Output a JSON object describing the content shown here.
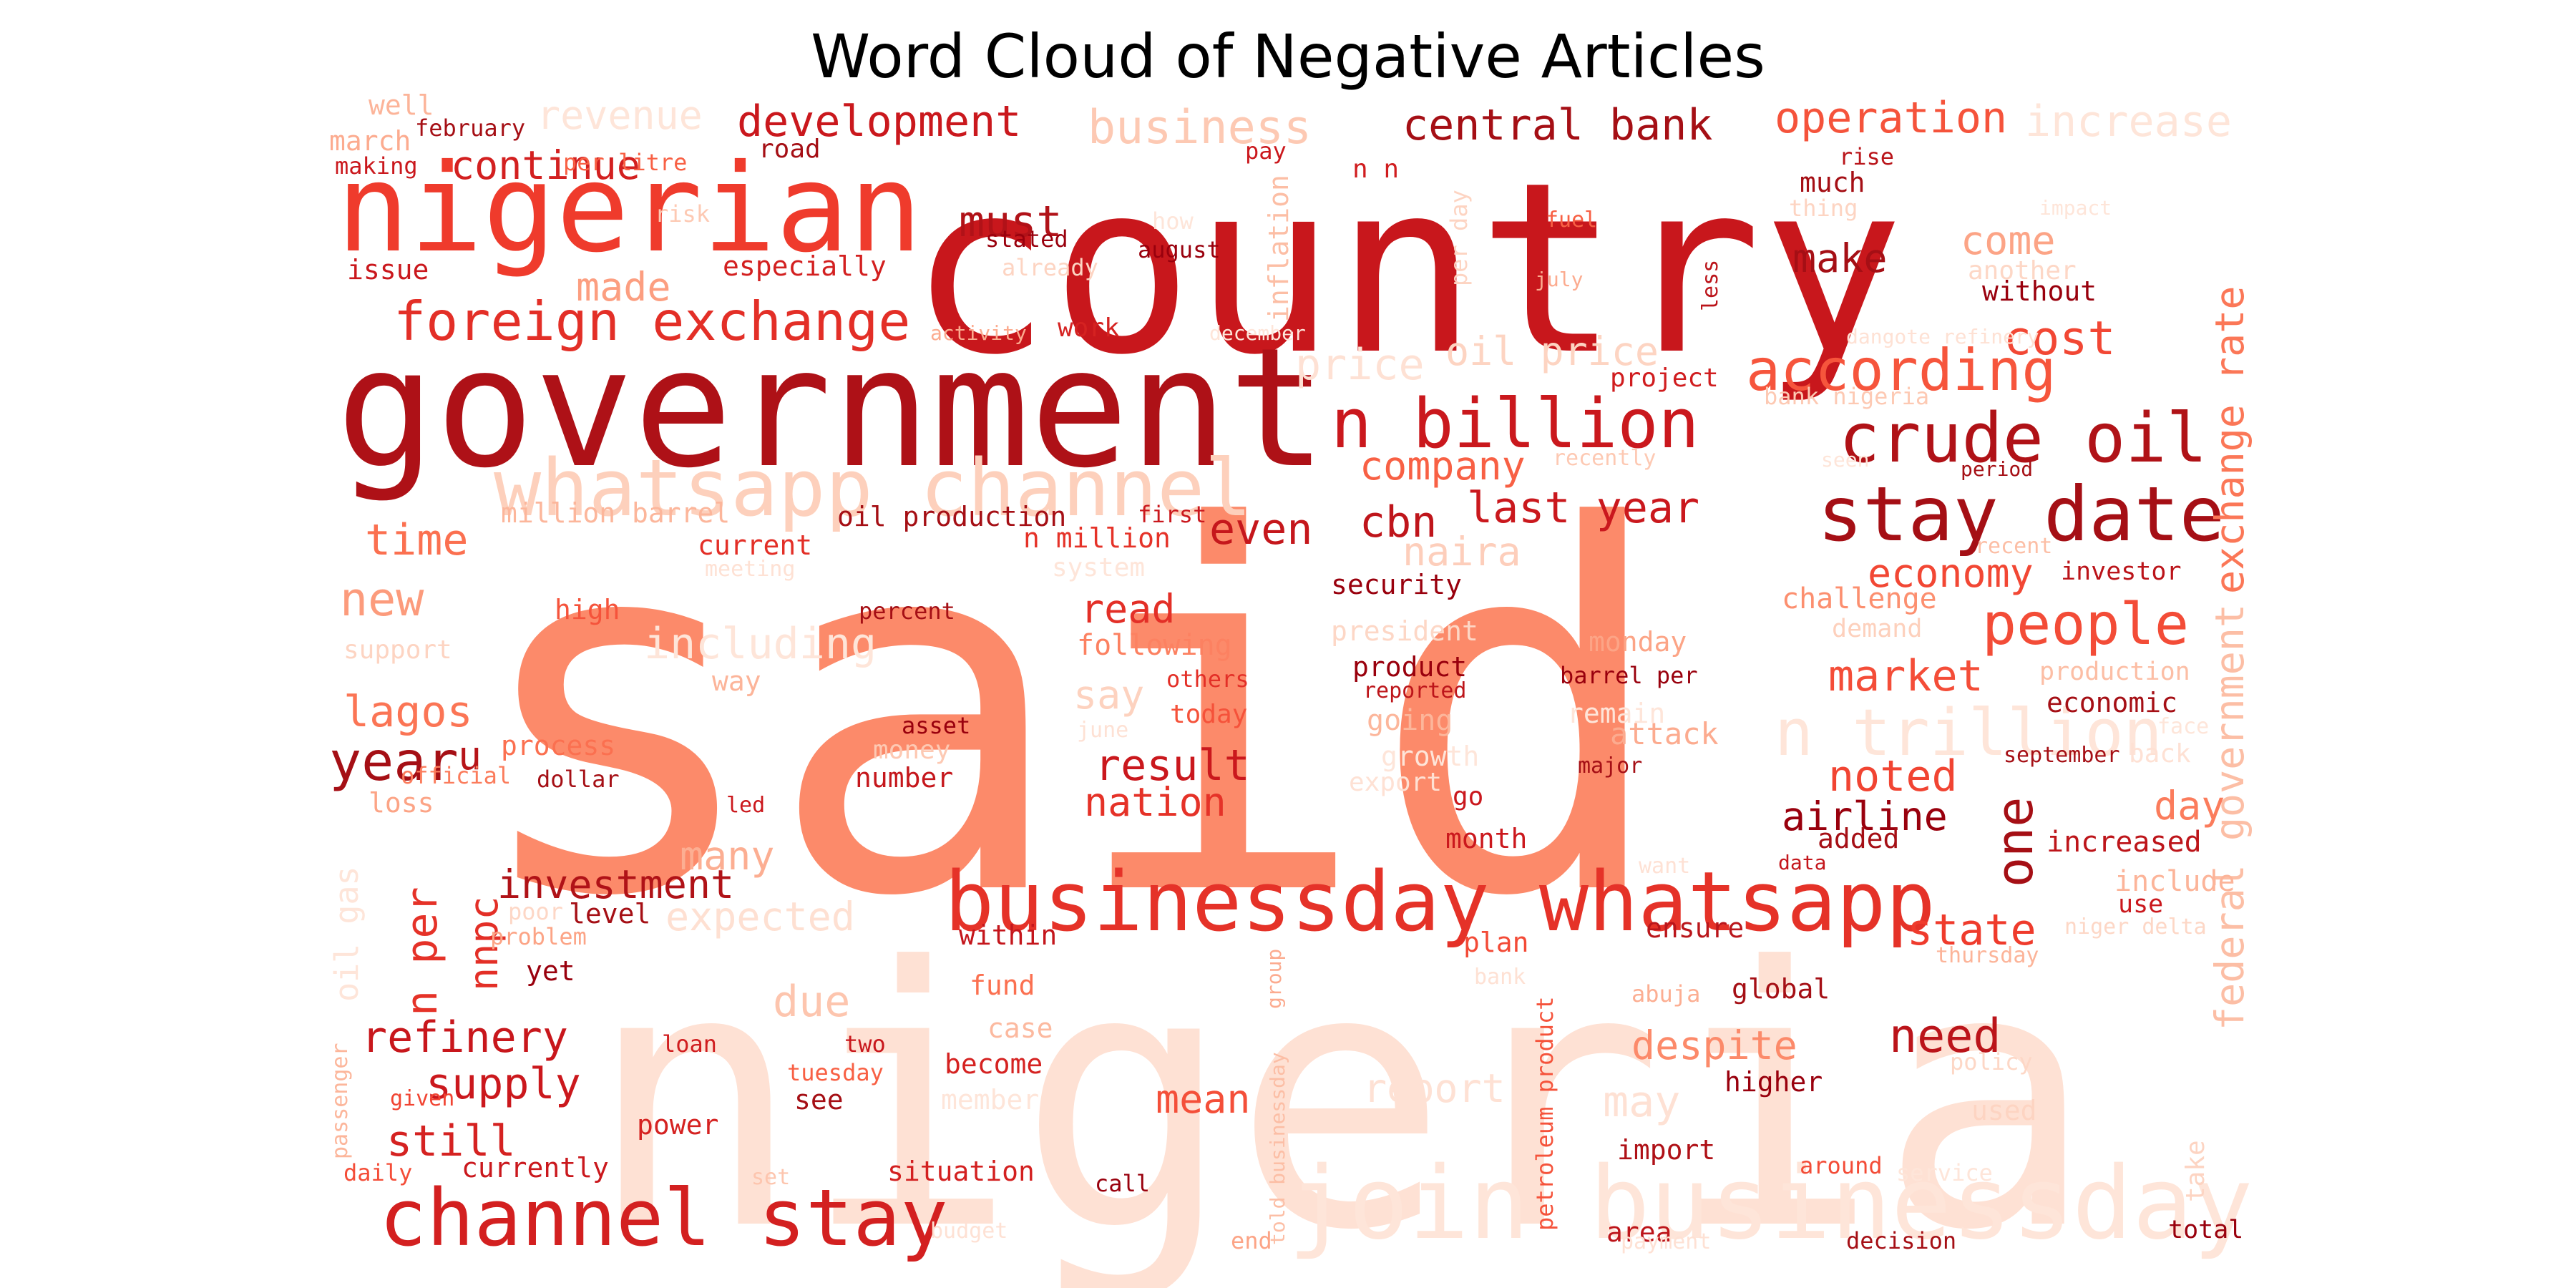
{
  "chart_data": {
    "type": "wordcloud",
    "title": "Word Cloud of Negative Articles",
    "colormap": "Reds",
    "words": [
      {
        "text": "said",
        "color": "#fc8a6a"
      },
      {
        "text": "nigeria",
        "color": "#fee1d4"
      },
      {
        "text": "country",
        "color": "#c8171c"
      },
      {
        "text": "government",
        "color": "#ae1117"
      },
      {
        "text": "nigerian",
        "color": "#ef3b2c"
      },
      {
        "text": "join businessday",
        "color": "#fee5d9"
      },
      {
        "text": "businessday whatsapp",
        "color": "#e53228"
      },
      {
        "text": "whatsapp channel",
        "color": "#fdd0bc"
      },
      {
        "text": "channel stay",
        "color": "#d32020"
      },
      {
        "text": "stay date",
        "color": "#a50f15"
      },
      {
        "text": "n billion",
        "color": "#ca181d"
      },
      {
        "text": "crude oil",
        "color": "#b01217"
      },
      {
        "text": "foreign exchange",
        "color": "#e32f27"
      },
      {
        "text": "n trillion",
        "color": "#fee5d9"
      },
      {
        "text": "according",
        "color": "#f6553c"
      },
      {
        "text": "people",
        "color": "#f34c37"
      },
      {
        "text": "exchange rate",
        "color": "#fb7757"
      },
      {
        "text": "federal government",
        "color": "#fcbea5"
      },
      {
        "text": "development",
        "color": "#ca181d"
      },
      {
        "text": "central bank",
        "color": "#a50f15"
      },
      {
        "text": "operation",
        "color": "#f5533b"
      },
      {
        "text": "increase",
        "color": "#fee5d9"
      },
      {
        "text": "business",
        "color": "#fdc9b3"
      },
      {
        "text": "revenue",
        "color": "#fee5d9"
      },
      {
        "text": "continue",
        "color": "#d32020"
      },
      {
        "text": "must",
        "color": "#b11218"
      },
      {
        "text": "made",
        "color": "#fc9e80"
      },
      {
        "text": "make",
        "color": "#a50f15"
      },
      {
        "text": "come",
        "color": "#fca486"
      },
      {
        "text": "cost",
        "color": "#f24734"
      },
      {
        "text": "oil price",
        "color": "#fdd4c2"
      },
      {
        "text": "price",
        "color": "#fee1d4"
      },
      {
        "text": "company",
        "color": "#f86044"
      },
      {
        "text": "last year",
        "color": "#ca181d"
      },
      {
        "text": "even",
        "color": "#c5171c"
      },
      {
        "text": "cbn",
        "color": "#bf151b"
      },
      {
        "text": "naira",
        "color": "#fdcebb"
      },
      {
        "text": "economy",
        "color": "#f24734"
      },
      {
        "text": "time",
        "color": "#fb7050"
      },
      {
        "text": "new",
        "color": "#fc9b7c"
      },
      {
        "text": "including",
        "color": "#fee5d9"
      },
      {
        "text": "lagos",
        "color": "#fb7555"
      },
      {
        "text": "year",
        "color": "#a50f15"
      },
      {
        "text": "u",
        "color": "#b61419"
      },
      {
        "text": "read",
        "color": "#e32f27"
      },
      {
        "text": "say",
        "color": "#fdd2bf"
      },
      {
        "text": "result",
        "color": "#ca181d"
      },
      {
        "text": "nation",
        "color": "#e53228"
      },
      {
        "text": "market",
        "color": "#f44d38"
      },
      {
        "text": "noted",
        "color": "#f14432"
      },
      {
        "text": "airline",
        "color": "#99000d"
      },
      {
        "text": "one",
        "color": "#a50f15"
      },
      {
        "text": "day",
        "color": "#fb7c5c"
      },
      {
        "text": "state",
        "color": "#ef3b2c"
      },
      {
        "text": "need",
        "color": "#bb141a"
      },
      {
        "text": "despite",
        "color": "#fc8a6a"
      },
      {
        "text": "investment",
        "color": "#b01217"
      },
      {
        "text": "many",
        "color": "#fcae92"
      },
      {
        "text": "expected",
        "color": "#fee0d2"
      },
      {
        "text": "due",
        "color": "#fdc5ae"
      },
      {
        "text": "refinery",
        "color": "#c8171c"
      },
      {
        "text": "supply",
        "color": "#cb181d"
      },
      {
        "text": "still",
        "color": "#d52221"
      },
      {
        "text": "mean",
        "color": "#f44f39"
      },
      {
        "text": "report",
        "color": "#fee1d4"
      },
      {
        "text": "may",
        "color": "#fee1d4"
      },
      {
        "text": "n per",
        "color": "#e53228"
      },
      {
        "text": "nnpc",
        "color": "#e32f27"
      },
      {
        "text": "oil gas",
        "color": "#fee5d9"
      },
      {
        "text": "production",
        "color": "#fcbea5"
      },
      {
        "text": "economic",
        "color": "#a50f15"
      },
      {
        "text": "increased",
        "color": "#bd151a"
      },
      {
        "text": "include",
        "color": "#fcb499"
      },
      {
        "text": "use",
        "color": "#ca181d"
      },
      {
        "text": "challenge",
        "color": "#fc8f6f"
      },
      {
        "text": "investor",
        "color": "#bb141a"
      },
      {
        "text": "security",
        "color": "#99000d"
      },
      {
        "text": "attack",
        "color": "#fcab8f"
      },
      {
        "text": "remain",
        "color": "#fee5d9"
      },
      {
        "text": "growth",
        "color": "#fee5d9"
      },
      {
        "text": "monday",
        "color": "#fca486"
      },
      {
        "text": "barrel per",
        "color": "#99000d"
      },
      {
        "text": "product",
        "color": "#99000d"
      },
      {
        "text": "reported",
        "color": "#bd151a"
      },
      {
        "text": "going",
        "color": "#fcb69b"
      },
      {
        "text": "president",
        "color": "#fdd7c6"
      },
      {
        "text": "demand",
        "color": "#fdd0bc"
      },
      {
        "text": "following",
        "color": "#fc8161"
      },
      {
        "text": "others",
        "color": "#e32f27"
      },
      {
        "text": "today",
        "color": "#f5523a"
      },
      {
        "text": "month",
        "color": "#cb181d"
      },
      {
        "text": "added",
        "color": "#a50f15"
      },
      {
        "text": "ensure",
        "color": "#ba161b"
      },
      {
        "text": "plan",
        "color": "#f34a36"
      },
      {
        "text": "global",
        "color": "#a50f15"
      },
      {
        "text": "fund",
        "color": "#fb7050"
      },
      {
        "text": "case",
        "color": "#fcb99f"
      },
      {
        "text": "become",
        "color": "#d52221"
      },
      {
        "text": "member",
        "color": "#fee5d9"
      },
      {
        "text": "higher",
        "color": "#99000d"
      },
      {
        "text": "import",
        "color": "#af1117"
      },
      {
        "text": "situation",
        "color": "#d32020"
      },
      {
        "text": "call",
        "color": "#99000d"
      },
      {
        "text": "area",
        "color": "#bd151a"
      },
      {
        "text": "total",
        "color": "#99000d"
      },
      {
        "text": "decision",
        "color": "#a50f15"
      },
      {
        "text": "around",
        "color": "#f34c37"
      },
      {
        "text": "currently",
        "color": "#ca181d"
      },
      {
        "text": "power",
        "color": "#d52221"
      },
      {
        "text": "see",
        "color": "#a50f15"
      },
      {
        "text": "tuesday",
        "color": "#f86044"
      },
      {
        "text": "two",
        "color": "#c8171c"
      },
      {
        "text": "loan",
        "color": "#d01d1f"
      },
      {
        "text": "within",
        "color": "#c4161c"
      },
      {
        "text": "yet",
        "color": "#99000d"
      },
      {
        "text": "problem",
        "color": "#fca486"
      },
      {
        "text": "level",
        "color": "#a50f15"
      },
      {
        "text": "poor",
        "color": "#fdd7c6"
      },
      {
        "text": "high",
        "color": "#f5533b"
      },
      {
        "text": "support",
        "color": "#fdd4c2"
      },
      {
        "text": "way",
        "color": "#fcb499"
      },
      {
        "text": "process",
        "color": "#fb7050"
      },
      {
        "text": "dollar",
        "color": "#a50f15"
      },
      {
        "text": "official",
        "color": "#fb7c5c"
      },
      {
        "text": "loss",
        "color": "#fca486"
      },
      {
        "text": "led",
        "color": "#cb181d"
      },
      {
        "text": "number",
        "color": "#c5171c"
      },
      {
        "text": "money",
        "color": "#fdc9b3"
      },
      {
        "text": "asset",
        "color": "#99000d"
      },
      {
        "text": "export",
        "color": "#fee1d4"
      },
      {
        "text": "go",
        "color": "#ca181d"
      },
      {
        "text": "major",
        "color": "#a50f15"
      },
      {
        "text": "september",
        "color": "#a50f15"
      },
      {
        "text": "back",
        "color": "#fee1d4"
      },
      {
        "text": "face",
        "color": "#fee5d9"
      },
      {
        "text": "want",
        "color": "#fee1d4"
      },
      {
        "text": "data",
        "color": "#c4161c"
      },
      {
        "text": "niger delta",
        "color": "#fdd7c6"
      },
      {
        "text": "thursday",
        "color": "#fcb499"
      },
      {
        "text": "abuja",
        "color": "#fcae92"
      },
      {
        "text": "policy",
        "color": "#fdd7c6"
      },
      {
        "text": "used",
        "color": "#fdd4c2"
      },
      {
        "text": "take",
        "color": "#fdd4c2"
      },
      {
        "text": "service",
        "color": "#fee5d9"
      },
      {
        "text": "payment",
        "color": "#fee1d4"
      },
      {
        "text": "end",
        "color": "#fca486"
      },
      {
        "text": "budget",
        "color": "#fee1d4"
      },
      {
        "text": "set",
        "color": "#fdc5ae"
      },
      {
        "text": "daily",
        "color": "#f44d38"
      },
      {
        "text": "given",
        "color": "#f14432"
      },
      {
        "text": "passenger",
        "color": "#fcb69b"
      },
      {
        "text": "told businessday",
        "color": "#fcbea5"
      },
      {
        "text": "petroleum product",
        "color": "#f5533b"
      },
      {
        "text": "group",
        "color": "#fcab8f"
      },
      {
        "text": "bank",
        "color": "#fee1d4"
      },
      {
        "text": "million barrel",
        "color": "#fcb69b"
      },
      {
        "text": "current",
        "color": "#e32f27"
      },
      {
        "text": "oil production",
        "color": "#a50f15"
      },
      {
        "text": "n million",
        "color": "#e53228"
      },
      {
        "text": "first",
        "color": "#ca181d"
      },
      {
        "text": "system",
        "color": "#fee5d9"
      },
      {
        "text": "meeting",
        "color": "#fee1d4"
      },
      {
        "text": "percent",
        "color": "#a50f15"
      },
      {
        "text": "well",
        "color": "#fcb499"
      },
      {
        "text": "february",
        "color": "#a50f15"
      },
      {
        "text": "march",
        "color": "#fcab8f"
      },
      {
        "text": "per litre",
        "color": "#f86044"
      },
      {
        "text": "making",
        "color": "#ca181d"
      },
      {
        "text": "road",
        "color": "#a50f15"
      },
      {
        "text": "risk",
        "color": "#fdc9b3"
      },
      {
        "text": "issue",
        "color": "#ca181d"
      },
      {
        "text": "stated",
        "color": "#99000d"
      },
      {
        "text": "already",
        "color": "#fdd4c2"
      },
      {
        "text": "especially",
        "color": "#d32020"
      },
      {
        "text": "activity",
        "color": "#fcab8f"
      },
      {
        "text": "work",
        "color": "#d52221"
      },
      {
        "text": "how",
        "color": "#fee5d9"
      },
      {
        "text": "august",
        "color": "#99000d"
      },
      {
        "text": "december",
        "color": "#fee5d9"
      },
      {
        "text": "pay",
        "color": "#cb181d"
      },
      {
        "text": "n n",
        "color": "#d01d1f"
      },
      {
        "text": "inflation",
        "color": "#fcbea5"
      },
      {
        "text": "per day",
        "color": "#fdd4c2"
      },
      {
        "text": "fuel",
        "color": "#f86044"
      },
      {
        "text": "july",
        "color": "#fcab8f"
      },
      {
        "text": "project",
        "color": "#d01d1f"
      },
      {
        "text": "less",
        "color": "#bb141a"
      },
      {
        "text": "rise",
        "color": "#ba161b"
      },
      {
        "text": "much",
        "color": "#a50f15"
      },
      {
        "text": "thing",
        "color": "#fdd4c2"
      },
      {
        "text": "impact",
        "color": "#fee5d9"
      },
      {
        "text": "another",
        "color": "#fdd7c6"
      },
      {
        "text": "without",
        "color": "#99000d"
      },
      {
        "text": "dangote refinery",
        "color": "#fee1d4"
      },
      {
        "text": "bank nigeria",
        "color": "#fdc9b3"
      },
      {
        "text": "recently",
        "color": "#fdc9b3"
      },
      {
        "text": "period",
        "color": "#a50f15"
      },
      {
        "text": "seen",
        "color": "#fee5d9"
      },
      {
        "text": "recent",
        "color": "#fcbea5"
      },
      {
        "text": "june",
        "color": "#fee1d4"
      }
    ]
  }
}
